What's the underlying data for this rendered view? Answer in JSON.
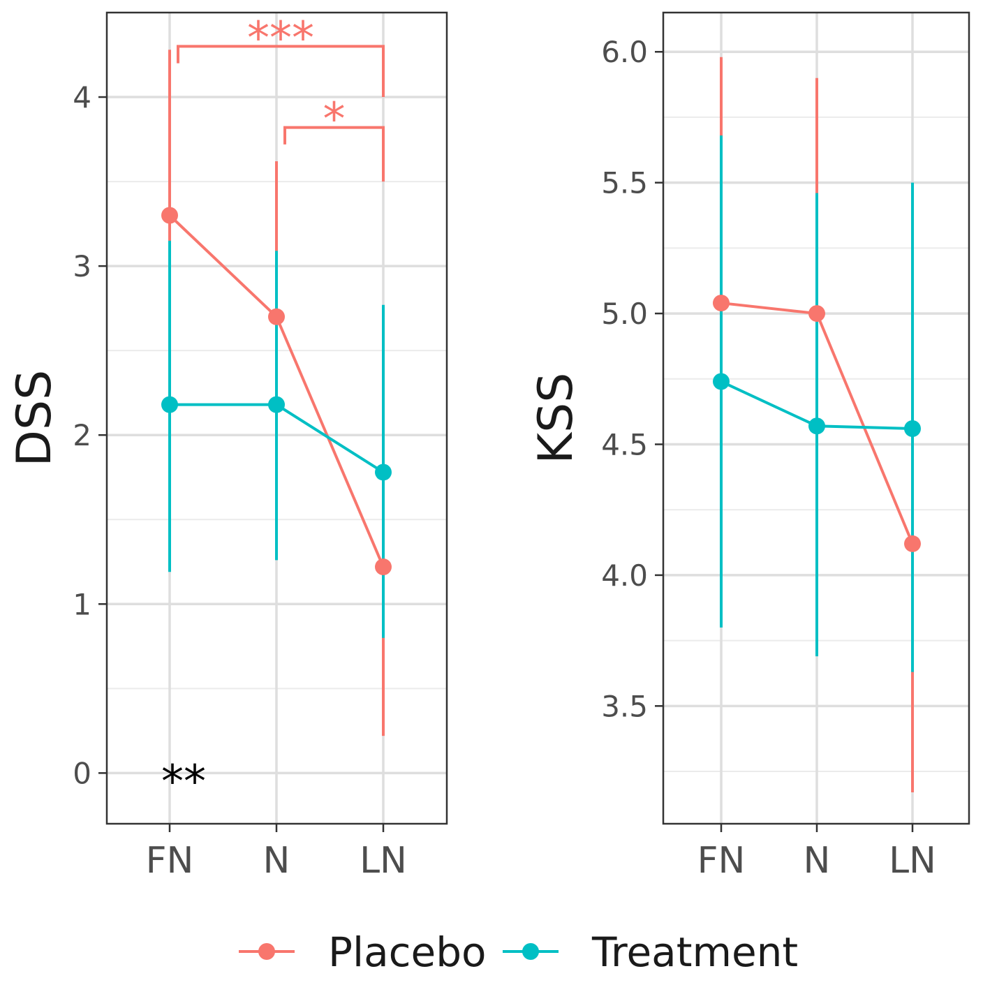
{
  "legend": {
    "entries": [
      {
        "label": "Placebo",
        "color": "#F8766D"
      },
      {
        "label": "Treatment",
        "color": "#00BFC4"
      }
    ],
    "position": "bottom"
  },
  "chart_data": [
    {
      "type": "line",
      "ylabel": "DSS",
      "xlabel": "",
      "categories": [
        "FN",
        "N",
        "LN"
      ],
      "ylim": [
        -0.3,
        4.5
      ],
      "yticks": [
        0,
        1,
        2,
        3,
        4
      ],
      "ytick_labels": [
        "0",
        "1",
        "2",
        "3",
        "4"
      ],
      "grid": true,
      "series": [
        {
          "name": "Placebo",
          "color": "#F8766D",
          "values": [
            3.3,
            2.7,
            1.22
          ],
          "lower": [
            2.33,
            1.76,
            0.22
          ],
          "upper": [
            4.28,
            3.62,
            2.21
          ]
        },
        {
          "name": "Treatment",
          "color": "#00BFC4",
          "values": [
            2.18,
            2.18,
            1.78
          ],
          "lower": [
            1.19,
            1.26,
            0.8
          ],
          "upper": [
            3.15,
            3.09,
            2.77
          ]
        }
      ],
      "annotations": [
        {
          "text": "***",
          "from": "FN",
          "to": "LN",
          "y": 4.3,
          "left_tick_bottom": 4.2,
          "right_tick_bottom": 4.0,
          "color": "#F8766D"
        },
        {
          "text": "*",
          "from": "N",
          "to": "LN",
          "y": 3.82,
          "left_tick_bottom": 3.72,
          "right_tick_bottom": 3.5,
          "color": "#F8766D"
        }
      ],
      "corner_text": {
        "text": "**",
        "x": "FN",
        "y": 0.0,
        "color": "#000000"
      }
    },
    {
      "type": "line",
      "ylabel": "KSS",
      "xlabel": "",
      "categories": [
        "FN",
        "N",
        "LN"
      ],
      "ylim": [
        3.05,
        6.15
      ],
      "yticks": [
        3.5,
        4.0,
        4.5,
        5.0,
        5.5,
        6.0
      ],
      "ytick_labels": [
        "3.5",
        "4.0",
        "4.5",
        "5.0",
        "5.5",
        "6.0"
      ],
      "grid": true,
      "series": [
        {
          "name": "Placebo",
          "color": "#F8766D",
          "values": [
            5.04,
            5.0,
            4.12
          ],
          "lower": [
            4.1,
            4.1,
            3.17
          ],
          "upper": [
            5.98,
            5.9,
            5.06
          ]
        },
        {
          "name": "Treatment",
          "color": "#00BFC4",
          "values": [
            4.74,
            4.57,
            4.56
          ],
          "lower": [
            3.8,
            3.69,
            3.63
          ],
          "upper": [
            5.68,
            5.46,
            5.5
          ]
        }
      ]
    }
  ]
}
